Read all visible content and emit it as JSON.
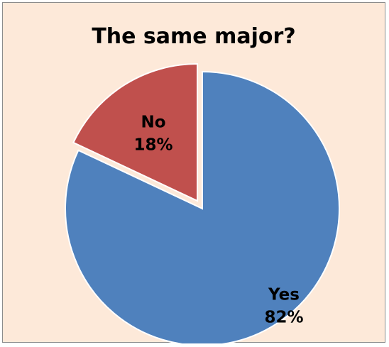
{
  "chart_data": {
    "type": "pie",
    "title": "The same major?",
    "slices": [
      {
        "name": "Yes",
        "value": 82,
        "label": "82%",
        "color": "#4f81bd",
        "exploded": false
      },
      {
        "name": "No",
        "value": 18,
        "label": "18%",
        "color": "#c0504d",
        "exploded": true
      }
    ],
    "background_color": "#fde9d9",
    "legend": "none"
  }
}
